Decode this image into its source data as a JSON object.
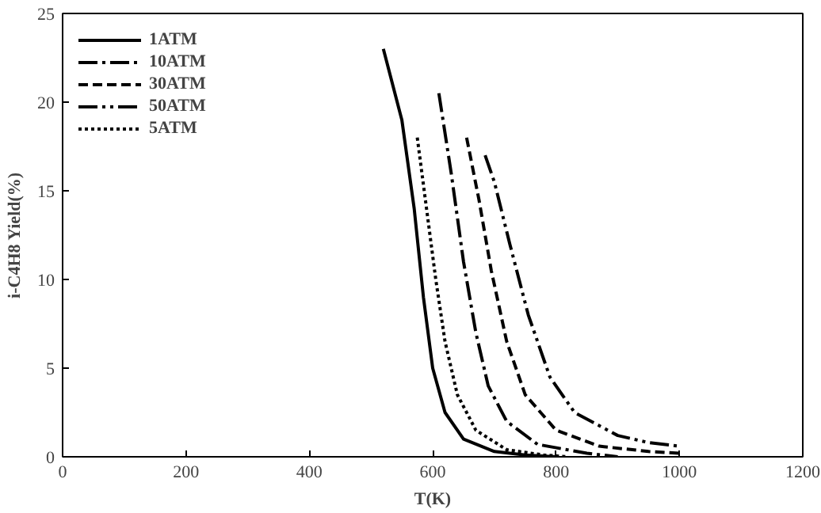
{
  "chart_data": {
    "type": "line",
    "xlabel": "T(K)",
    "ylabel": "i-C4H8 Yield(%)",
    "xlim": [
      0,
      1200
    ],
    "ylim": [
      0,
      25
    ],
    "xticks": [
      0,
      200,
      400,
      600,
      800,
      1000,
      1200
    ],
    "yticks": [
      0,
      5,
      10,
      15,
      20,
      25
    ],
    "grid": false,
    "legend": "top left",
    "marker": "none",
    "series": [
      {
        "name": "1ATM",
        "color": "#000000",
        "line_style": "solid",
        "x": [
          520,
          550,
          570,
          585,
          600,
          620,
          650,
          700,
          750,
          800
        ],
        "values": [
          23,
          19,
          14,
          9,
          5,
          2.5,
          1,
          0.3,
          0.1,
          0
        ]
      },
      {
        "name": "10ATM",
        "color": "#000000",
        "line_style": "dashdot",
        "x": [
          610,
          630,
          650,
          670,
          690,
          720,
          770,
          850,
          900
        ],
        "values": [
          20.5,
          16,
          11,
          7,
          4,
          2,
          0.7,
          0.2,
          0
        ]
      },
      {
        "name": "30ATM",
        "color": "#000000",
        "line_style": "dashed",
        "x": [
          655,
          675,
          695,
          720,
          750,
          800,
          870,
          950,
          1000
        ],
        "values": [
          18,
          14.5,
          10.5,
          6.5,
          3.5,
          1.5,
          0.6,
          0.3,
          0.2
        ]
      },
      {
        "name": "50ATM",
        "color": "#000000",
        "line_style": "dashdotdot",
        "x": [
          685,
          700,
          725,
          755,
          790,
          830,
          900,
          950,
          1000
        ],
        "values": [
          17,
          15.5,
          12,
          8,
          4.5,
          2.5,
          1.2,
          0.8,
          0.6
        ]
      },
      {
        "name": "5ATM",
        "color": "#000000",
        "line_style": "dotted",
        "x": [
          575,
          590,
          605,
          620,
          640,
          670,
          720,
          780,
          820
        ],
        "values": [
          18,
          14,
          10,
          6.5,
          3.5,
          1.5,
          0.4,
          0.1,
          0
        ]
      }
    ]
  }
}
